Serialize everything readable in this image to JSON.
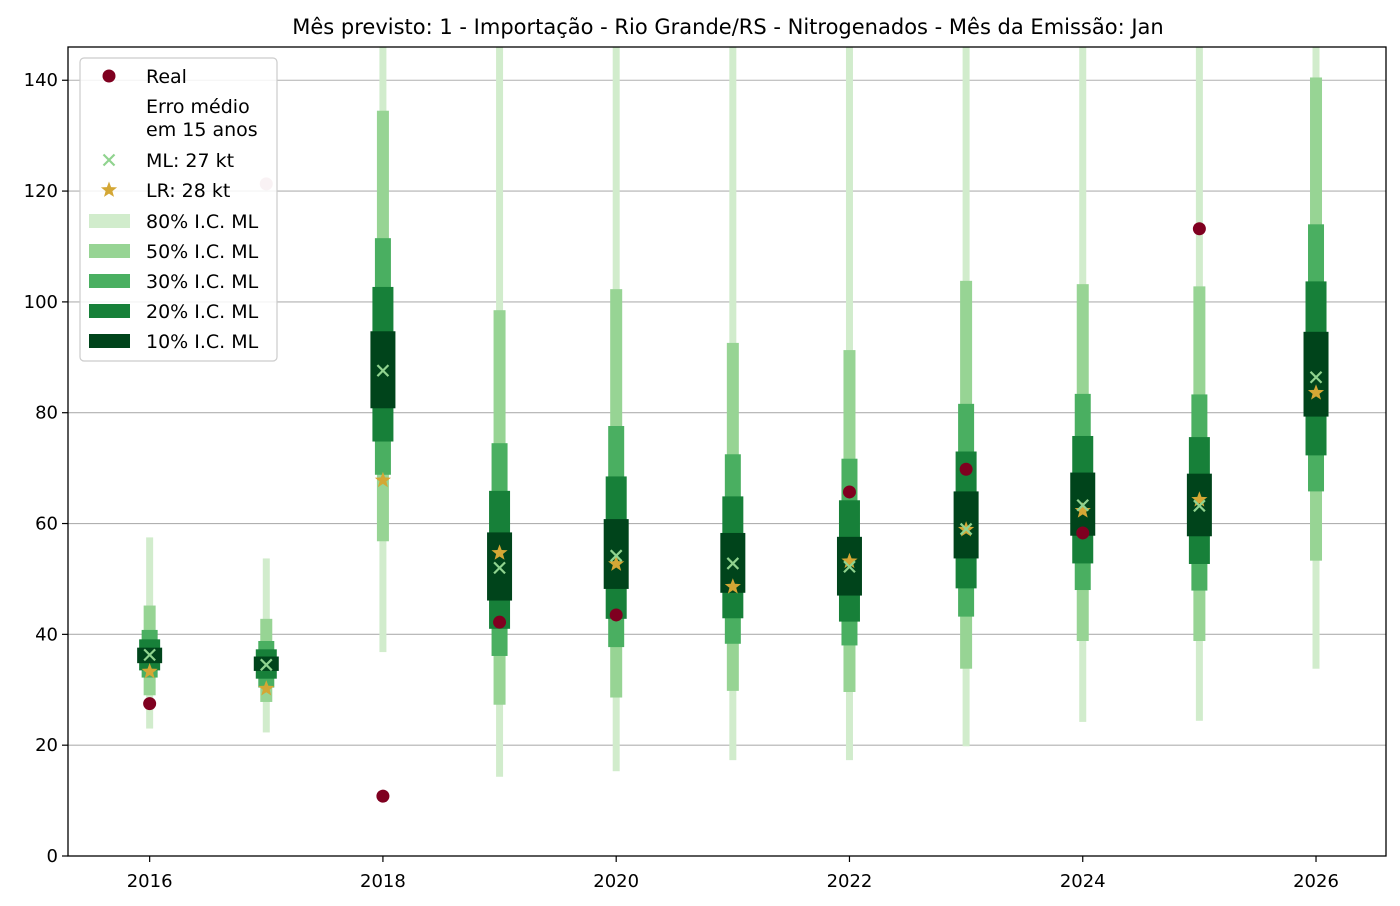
{
  "chart_data": {
    "type": "scatter",
    "title": "Mês previsto: 1 - Importação - Rio Grande/RS - Nitrogenados - Mês da Emissão: Jan",
    "xlabel": "",
    "ylabel": "",
    "xlim": [
      2015.3,
      2026.6
    ],
    "ylim": [
      0,
      146
    ],
    "x_ticks": [
      2016,
      2018,
      2020,
      2022,
      2024,
      2026
    ],
    "y_ticks": [
      0,
      20,
      40,
      60,
      80,
      100,
      120,
      140
    ],
    "grid": "horizontal",
    "legend_position": "top-left",
    "colors": {
      "real": "#7f0020",
      "real_faded": "#d4aab6",
      "ml": "#90d38f",
      "lr": "#d4a735",
      "ci80": "#d1eccc",
      "ci50": "#97d494",
      "ci30": "#4aaf61",
      "ci20": "#178039",
      "ci10": "#00441b",
      "grid": "#b0b0b0"
    },
    "legend": [
      {
        "key": "real",
        "label": "Real",
        "marker": "circle"
      },
      {
        "key": "note",
        "label": "Erro médio\nem 15 anos",
        "marker": "none"
      },
      {
        "key": "ml",
        "label": "ML: 27 kt",
        "marker": "x"
      },
      {
        "key": "lr",
        "label": "LR: 28 kt",
        "marker": "star"
      },
      {
        "key": "ci80",
        "label": "80% I.C. ML",
        "marker": "patch"
      },
      {
        "key": "ci50",
        "label": "50% I.C. ML",
        "marker": "patch"
      },
      {
        "key": "ci30",
        "label": "30% I.C. ML",
        "marker": "patch"
      },
      {
        "key": "ci20",
        "label": "20% I.C. ML",
        "marker": "patch"
      },
      {
        "key": "ci10",
        "label": "10% I.C. ML",
        "marker": "patch"
      }
    ],
    "series": [
      {
        "year": 2016,
        "real": 27.5,
        "real_faded": false,
        "ml": 36.3,
        "lr": 33.3,
        "ci80": [
          23,
          57.5
        ],
        "ci50": [
          29,
          45.2
        ],
        "ci30": [
          32.2,
          40.8
        ],
        "ci20": [
          33.5,
          39.1
        ],
        "ci10": [
          34.8,
          37.6
        ]
      },
      {
        "year": 2017,
        "real": 121.3,
        "real_faded": true,
        "ml": 34.5,
        "lr": 30.2,
        "ci80": [
          22.3,
          53.7
        ],
        "ci50": [
          27.8,
          42.8
        ],
        "ci30": [
          30.4,
          38.8
        ],
        "ci20": [
          32,
          37.3
        ],
        "ci10": [
          33.4,
          36
        ]
      },
      {
        "year": 2018,
        "real": 10.8,
        "real_faded": false,
        "ml": 87.6,
        "lr": 67.8,
        "ci80": [
          36.8,
          146
        ],
        "ci50": [
          56.8,
          134.5
        ],
        "ci30": [
          68.8,
          111.5
        ],
        "ci20": [
          74.8,
          102.7
        ],
        "ci10": [
          80.8,
          94.7
        ]
      },
      {
        "year": 2019,
        "real": 42.2,
        "real_faded": false,
        "ml": 52,
        "lr": 54.7,
        "ci80": [
          14.3,
          146
        ],
        "ci50": [
          27.3,
          98.5
        ],
        "ci30": [
          36.1,
          74.5
        ],
        "ci20": [
          41,
          65.9
        ],
        "ci10": [
          46.1,
          58.4
        ]
      },
      {
        "year": 2020,
        "real": 43.5,
        "real_faded": false,
        "ml": 54.2,
        "lr": 52.7,
        "ci80": [
          15.3,
          146
        ],
        "ci50": [
          28.6,
          102.3
        ],
        "ci30": [
          37.7,
          77.6
        ],
        "ci20": [
          42.8,
          68.5
        ],
        "ci10": [
          48.2,
          60.8
        ]
      },
      {
        "year": 2021,
        "real": null,
        "real_faded": false,
        "ml": 52.8,
        "lr": 48.6,
        "ci80": [
          17.3,
          146
        ],
        "ci50": [
          29.8,
          92.6
        ],
        "ci30": [
          38.3,
          72.5
        ],
        "ci20": [
          42.9,
          64.9
        ],
        "ci10": [
          47.5,
          58.3
        ]
      },
      {
        "year": 2022,
        "real": 65.7,
        "real_faded": false,
        "ml": 52.2,
        "lr": 53.2,
        "ci80": [
          17.3,
          146
        ],
        "ci50": [
          29.6,
          91.3
        ],
        "ci30": [
          38,
          71.7
        ],
        "ci20": [
          42.3,
          64.2
        ],
        "ci10": [
          47,
          57.6
        ]
      },
      {
        "year": 2023,
        "real": 69.8,
        "real_faded": false,
        "ml": 59,
        "lr": 58.9,
        "ci80": [
          19.8,
          146
        ],
        "ci50": [
          33.8,
          103.8
        ],
        "ci30": [
          43.2,
          81.6
        ],
        "ci20": [
          48.3,
          73
        ],
        "ci10": [
          53.7,
          65.8
        ]
      },
      {
        "year": 2024,
        "real": 58.3,
        "real_faded": false,
        "ml": 63.3,
        "lr": 62.3,
        "ci80": [
          24.2,
          146
        ],
        "ci50": [
          38.8,
          103.2
        ],
        "ci30": [
          48,
          83.4
        ],
        "ci20": [
          52.8,
          75.8
        ],
        "ci10": [
          57.8,
          69.2
        ]
      },
      {
        "year": 2025,
        "real": 113.2,
        "real_faded": false,
        "ml": 63.2,
        "lr": 64.3,
        "ci80": [
          24.4,
          146
        ],
        "ci50": [
          38.8,
          102.8
        ],
        "ci30": [
          47.9,
          83.3
        ],
        "ci20": [
          52.7,
          75.6
        ],
        "ci10": [
          57.7,
          69
        ]
      },
      {
        "year": 2026,
        "real": null,
        "real_faded": false,
        "ml": 86.4,
        "lr": 83.6,
        "ci80": [
          33.8,
          146
        ],
        "ci50": [
          53.3,
          140.5
        ],
        "ci30": [
          65.8,
          114
        ],
        "ci20": [
          72.3,
          103.7
        ],
        "ci10": [
          79.3,
          94.6
        ]
      }
    ]
  }
}
